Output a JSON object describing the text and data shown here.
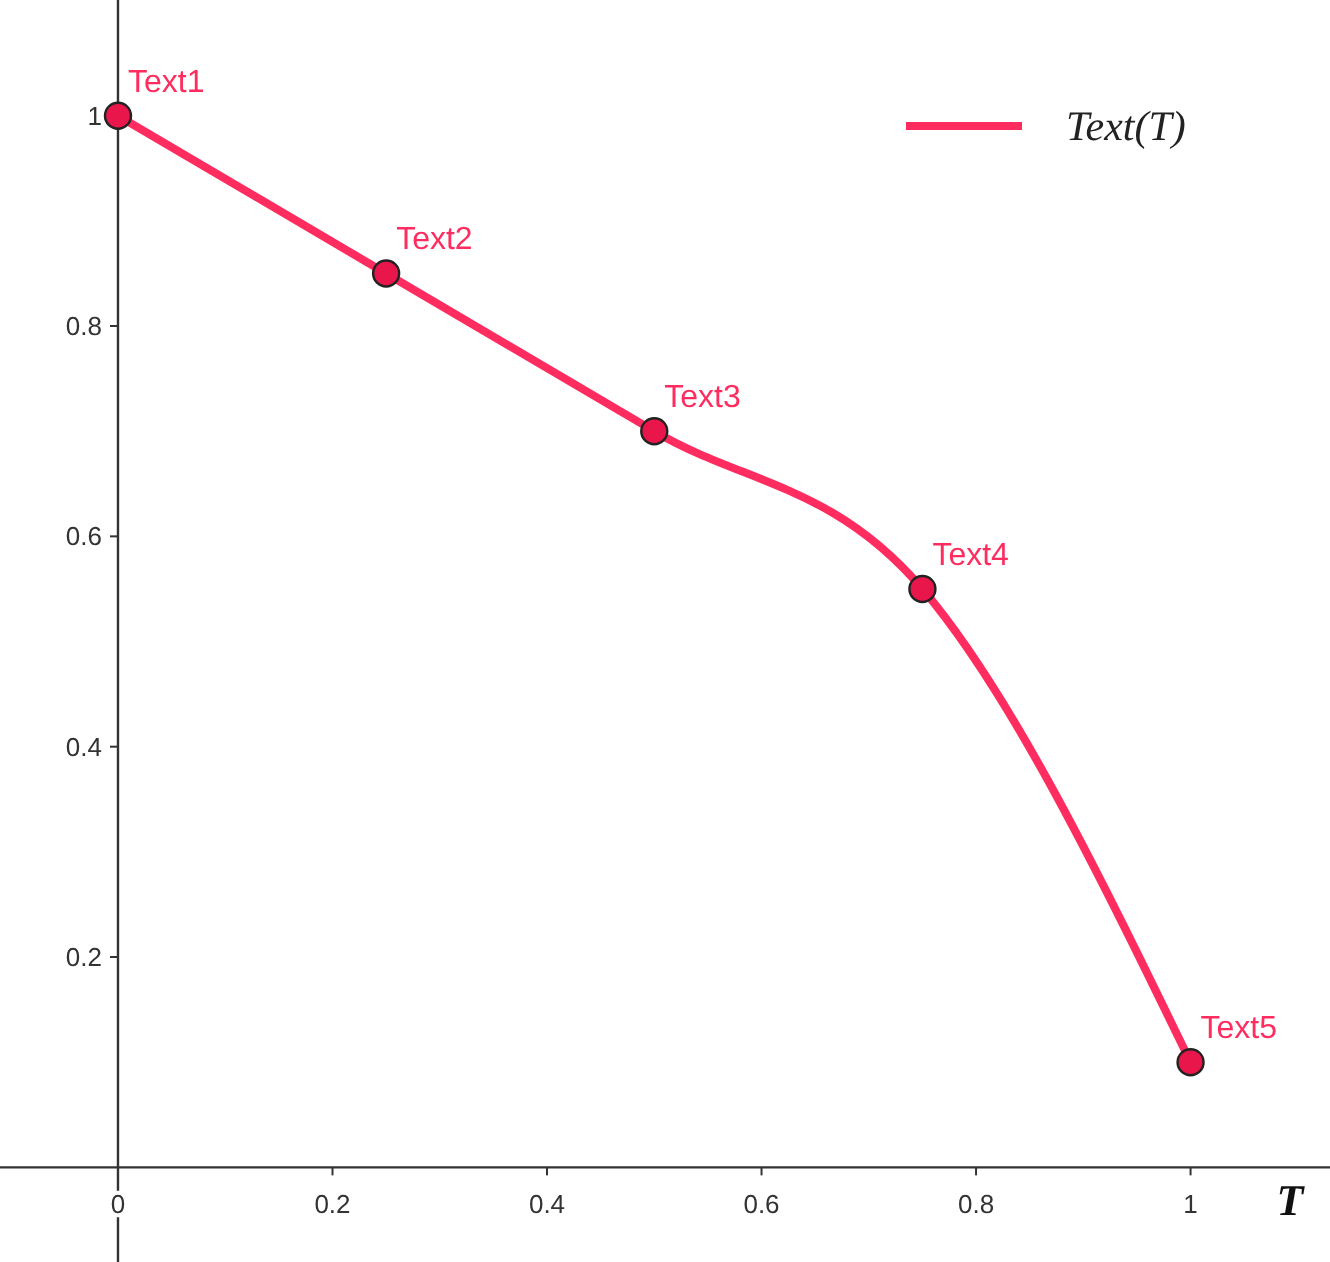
{
  "chart_data": {
    "type": "line",
    "xlabel": "T",
    "x": [
      0,
      0.25,
      0.5,
      0.75,
      1
    ],
    "series": [
      {
        "name": "Text(T)",
        "color": "#ff2d5f",
        "values": [
          1,
          0.85,
          0.7,
          0.55,
          0.1
        ]
      }
    ],
    "xlim": [
      -0.11,
      1.13
    ],
    "ylim": [
      -0.09,
      1.11
    ],
    "xticks": [
      0,
      0.2,
      0.4,
      0.6,
      0.8,
      1
    ],
    "yticks": [
      0.2,
      0.4,
      0.6,
      0.8,
      1
    ],
    "marker": "circle",
    "line_style": "solid",
    "grid": false,
    "legend": "top right",
    "annotations": [
      {
        "text": "Text1",
        "x": 0,
        "y": 1
      },
      {
        "text": "Text2",
        "x": 0.25,
        "y": 0.85
      },
      {
        "text": "Text3",
        "x": 0.5,
        "y": 0.7
      },
      {
        "text": "Text4",
        "x": 0.75,
        "y": 0.55
      },
      {
        "text": "Text5",
        "x": 1,
        "y": 0.1
      }
    ]
  }
}
